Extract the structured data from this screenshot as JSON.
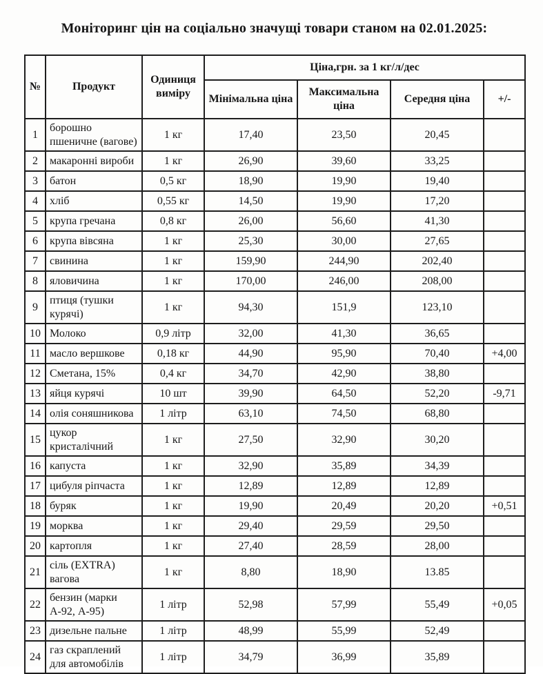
{
  "title": "Моніторинг цін на соціально значущі товари станом на 02.01.2025:",
  "table": {
    "price_group_header": "Ціна,грн. за 1 кг/л/дес",
    "columns": {
      "num": "№",
      "product": "Продукт",
      "unit": "Одиниця виміру",
      "min": "Мінімальна ціна",
      "max": "Максимальна ціна",
      "avg": "Середня ціна",
      "delta": "+/-"
    },
    "rows": [
      {
        "num": "1",
        "product": "борошно пшеничне (вагове)",
        "unit": "1 кг",
        "min": "17,40",
        "max": "23,50",
        "avg": "20,45",
        "delta": ""
      },
      {
        "num": "2",
        "product": "макаронні вироби",
        "unit": "1 кг",
        "min": "26,90",
        "max": "39,60",
        "avg": "33,25",
        "delta": ""
      },
      {
        "num": "3",
        "product": "батон",
        "unit": "0,5 кг",
        "min": "18,90",
        "max": "19,90",
        "avg": "19,40",
        "delta": ""
      },
      {
        "num": "4",
        "product": "хліб",
        "unit": "0,55 кг",
        "min": "14,50",
        "max": "19,90",
        "avg": "17,20",
        "delta": ""
      },
      {
        "num": "5",
        "product": "крупа гречана",
        "unit": "0,8 кг",
        "min": "26,00",
        "max": "56,60",
        "avg": "41,30",
        "delta": ""
      },
      {
        "num": "6",
        "product": "крупа вівсяна",
        "unit": "1 кг",
        "min": "25,30",
        "max": "30,00",
        "avg": "27,65",
        "delta": ""
      },
      {
        "num": "7",
        "product": "свинина",
        "unit": "1 кг",
        "min": "159,90",
        "max": "244,90",
        "avg": "202,40",
        "delta": ""
      },
      {
        "num": "8",
        "product": "яловичина",
        "unit": "1 кг",
        "min": "170,00",
        "max": "246,00",
        "avg": "208,00",
        "delta": ""
      },
      {
        "num": "9",
        "product": "птиця (тушки курячі)",
        "unit": "1 кг",
        "min": "94,30",
        "max": "151,9",
        "avg": "123,10",
        "delta": ""
      },
      {
        "num": "10",
        "product": "Молоко",
        "unit": "0,9 літр",
        "min": "32,00",
        "max": "41,30",
        "avg": "36,65",
        "delta": ""
      },
      {
        "num": "11",
        "product": "масло вершкове",
        "unit": "0,18 кг",
        "min": "44,90",
        "max": "95,90",
        "avg": "70,40",
        "delta": "+4,00"
      },
      {
        "num": "12",
        "product": "Сметана, 15%",
        "unit": "0,4 кг",
        "min": "34,70",
        "max": "42,90",
        "avg": "38,80",
        "delta": ""
      },
      {
        "num": "13",
        "product": "яйця курячі",
        "unit": "10 шт",
        "min": "39,90",
        "max": "64,50",
        "avg": "52,20",
        "delta": "-9,71"
      },
      {
        "num": "14",
        "product": "олія соняшникова",
        "unit": "1 літр",
        "min": "63,10",
        "max": "74,50",
        "avg": "68,80",
        "delta": ""
      },
      {
        "num": "15",
        "product": "цукор кристалічний",
        "unit": "1 кг",
        "min": "27,50",
        "max": "32,90",
        "avg": "30,20",
        "delta": ""
      },
      {
        "num": "16",
        "product": "капуста",
        "unit": "1 кг",
        "min": "32,90",
        "max": "35,89",
        "avg": "34,39",
        "delta": ""
      },
      {
        "num": "17",
        "product": "цибуля ріпчаста",
        "unit": "1 кг",
        "min": "12,89",
        "max": "12,89",
        "avg": "12,89",
        "delta": ""
      },
      {
        "num": "18",
        "product": "буряк",
        "unit": "1 кг",
        "min": "19,90",
        "max": "20,49",
        "avg": "20,20",
        "delta": "+0,51"
      },
      {
        "num": "19",
        "product": "морква",
        "unit": "1 кг",
        "min": "29,40",
        "max": "29,59",
        "avg": "29,50",
        "delta": ""
      },
      {
        "num": "20",
        "product": "картопля",
        "unit": "1 кг",
        "min": "27,40",
        "max": "28,59",
        "avg": "28,00",
        "delta": ""
      },
      {
        "num": "21",
        "product": "сіль (EXTRA) вагова",
        "unit": "1 кг",
        "min": "8,80",
        "max": "18,90",
        "avg": "13.85",
        "delta": ""
      },
      {
        "num": "22",
        "product": "бензин (марки А-92, А-95)",
        "unit": "1 літр",
        "min": "52,98",
        "max": "57,99",
        "avg": "55,49",
        "delta": "+0,05"
      },
      {
        "num": "23",
        "product": "дизельне пальне",
        "unit": "1 літр",
        "min": "48,99",
        "max": "55,99",
        "avg": "52,49",
        "delta": ""
      },
      {
        "num": "24",
        "product": "газ скраплений для автомобілів",
        "unit": "1 літр",
        "min": "34,79",
        "max": "36,99",
        "avg": "35,89",
        "delta": ""
      }
    ]
  }
}
